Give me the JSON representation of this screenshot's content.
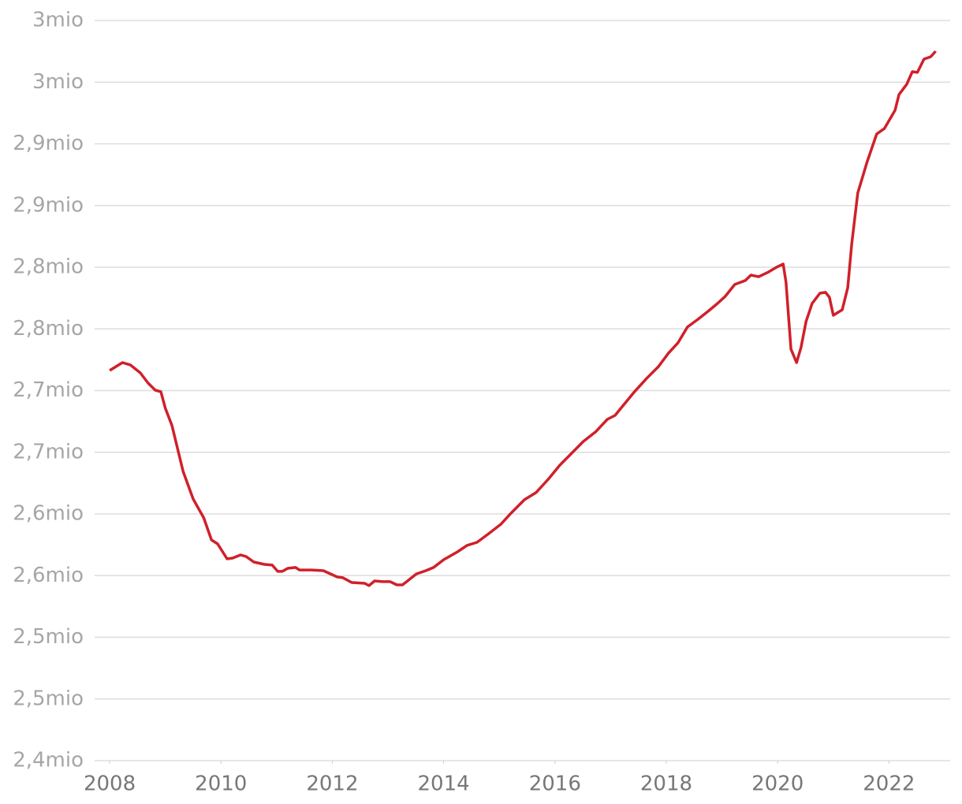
{
  "chart_data": {
    "type": "line",
    "color": "#d0202a",
    "grid": true,
    "x": [
      2008.0,
      2008.23,
      2008.37,
      2008.55,
      2008.69,
      2008.82,
      2008.92,
      2009.0,
      2009.12,
      2009.32,
      2009.5,
      2009.69,
      2009.83,
      2009.94,
      2010.11,
      2010.21,
      2010.35,
      2010.45,
      2010.59,
      2010.78,
      2010.92,
      2011.02,
      2011.1,
      2011.2,
      2011.34,
      2011.41,
      2011.63,
      2011.84,
      2012.09,
      2012.19,
      2012.35,
      2012.58,
      2012.66,
      2012.76,
      2012.9,
      2013.04,
      2013.16,
      2013.26,
      2013.37,
      2013.51,
      2013.68,
      2013.82,
      2014.0,
      2014.25,
      2014.42,
      2014.6,
      2014.81,
      2015.03,
      2015.21,
      2015.45,
      2015.66,
      2015.88,
      2016.09,
      2016.3,
      2016.51,
      2016.73,
      2016.94,
      2017.08,
      2017.22,
      2017.43,
      2017.65,
      2017.86,
      2018.04,
      2018.21,
      2018.38,
      2018.57,
      2018.75,
      2018.92,
      2019.06,
      2019.23,
      2019.42,
      2019.52,
      2019.66,
      2019.84,
      2019.98,
      2020.1,
      2020.15,
      2020.24,
      2020.34,
      2020.42,
      2020.51,
      2020.62,
      2020.76,
      2020.86,
      2020.93,
      2021.0,
      2021.16,
      2021.26,
      2021.33,
      2021.44,
      2021.61,
      2021.78,
      2021.92,
      2022.11,
      2022.18,
      2022.32,
      2022.42,
      2022.51,
      2022.63,
      2022.75,
      2022.84
    ],
    "values": [
      2.7163,
      2.7227,
      2.7208,
      2.7144,
      2.7061,
      2.7003,
      2.6991,
      2.6856,
      2.6716,
      2.6345,
      2.6122,
      2.5968,
      2.5789,
      2.5757,
      2.5636,
      2.5642,
      2.5668,
      2.5655,
      2.561,
      2.5591,
      2.5585,
      2.5534,
      2.5534,
      2.5559,
      2.5566,
      2.5546,
      2.5546,
      2.554,
      2.5489,
      2.5483,
      2.5444,
      2.5438,
      2.5419,
      2.5457,
      2.5451,
      2.5451,
      2.5425,
      2.5425,
      2.5463,
      2.5514,
      2.554,
      2.5566,
      2.5629,
      2.5693,
      2.5745,
      2.577,
      2.584,
      2.5917,
      2.6006,
      2.6115,
      2.6173,
      2.6281,
      2.6396,
      2.6492,
      2.6588,
      2.6665,
      2.6767,
      2.6799,
      2.6876,
      2.6991,
      2.71,
      2.7195,
      2.7304,
      2.7387,
      2.7515,
      2.7578,
      2.7642,
      2.7706,
      2.7764,
      2.786,
      2.7892,
      2.7936,
      2.7923,
      2.7962,
      2.8,
      2.8026,
      2.7879,
      2.7336,
      2.7227,
      2.7348,
      2.7559,
      2.7706,
      2.7789,
      2.7796,
      2.7757,
      2.761,
      2.7655,
      2.7834,
      2.8186,
      2.8601,
      2.8857,
      2.908,
      2.9125,
      2.9272,
      2.94,
      2.9483,
      2.9585,
      2.9579,
      2.9687,
      2.9706,
      2.9751
    ],
    "xlim": [
      2007.73,
      2023.1
    ],
    "xticks": [
      2008,
      2010,
      2012,
      2014,
      2016,
      2018,
      2020,
      2022
    ],
    "ylim": [
      2.4,
      3.0
    ],
    "yticks": [
      {
        "value": 2.4,
        "label": "2,4mio"
      },
      {
        "value": 2.45,
        "label": "2,5mio"
      },
      {
        "value": 2.5,
        "label": "2,5mio"
      },
      {
        "value": 2.55,
        "label": "2,6mio"
      },
      {
        "value": 2.6,
        "label": "2,6mio"
      },
      {
        "value": 2.65,
        "label": "2,7mio"
      },
      {
        "value": 2.7,
        "label": "2,7mio"
      },
      {
        "value": 2.75,
        "label": "2,8mio"
      },
      {
        "value": 2.8,
        "label": "2,8mio"
      },
      {
        "value": 2.85,
        "label": "2,9mio"
      },
      {
        "value": 2.9,
        "label": "2,9mio"
      },
      {
        "value": 2.95,
        "label": "3mio"
      },
      {
        "value": 3.0,
        "label": "3mio"
      }
    ]
  }
}
